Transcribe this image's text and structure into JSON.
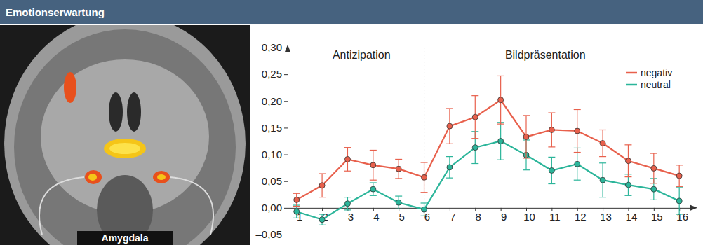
{
  "chart_data": {
    "type": "line",
    "title": "Emotionserwartung",
    "image_caption": "Amygdala",
    "phase_labels": [
      "Antizipation",
      "Bildpräsentation"
    ],
    "phase_boundary": 6,
    "x": [
      1,
      2,
      3,
      4,
      5,
      6,
      7,
      8,
      9,
      10,
      11,
      12,
      13,
      14,
      15,
      16
    ],
    "xlim": [
      0.65,
      16.6
    ],
    "xticks": [
      1,
      2,
      3,
      4,
      5,
      6,
      7,
      8,
      9,
      10,
      11,
      12,
      13,
      14,
      15,
      16
    ],
    "ylim": [
      -0.05,
      0.3
    ],
    "yticks": [
      {
        "value": -0.05,
        "label": "–0,05"
      },
      {
        "value": 0,
        "label": "0,00"
      },
      {
        "value": 0.05,
        "label": "0,05"
      },
      {
        "value": 0.1,
        "label": "0,10"
      },
      {
        "value": 0.15,
        "label": "0,15"
      },
      {
        "value": 0.2,
        "label": "0,20"
      },
      {
        "value": 0.25,
        "label": "0,25"
      },
      {
        "value": 0.3,
        "label": "0,30"
      }
    ],
    "grid": false,
    "legend": "upper right",
    "series": [
      {
        "name": "negativ",
        "color": "#e8604c",
        "marker": "circle",
        "values": [
          0.015,
          0.042,
          0.091,
          0.08,
          0.073,
          0.057,
          0.153,
          0.17,
          0.202,
          0.133,
          0.146,
          0.144,
          0.121,
          0.088,
          0.074,
          0.06
        ],
        "errors": [
          0.012,
          0.022,
          0.022,
          0.028,
          0.018,
          0.028,
          0.033,
          0.04,
          0.045,
          0.04,
          0.032,
          0.04,
          0.025,
          0.03,
          0.028,
          0.02
        ]
      },
      {
        "name": "neutral",
        "color": "#2bb59a",
        "marker": "circle",
        "values": [
          -0.007,
          -0.022,
          0.008,
          0.035,
          0.01,
          -0.003,
          0.076,
          0.113,
          0.125,
          0.099,
          0.07,
          0.082,
          0.052,
          0.043,
          0.035,
          0.013
        ],
        "errors": [
          0.012,
          0.01,
          0.012,
          0.012,
          0.012,
          0.012,
          0.02,
          0.03,
          0.035,
          0.028,
          0.025,
          0.03,
          0.032,
          0.02,
          0.02,
          0.025
        ]
      }
    ]
  }
}
